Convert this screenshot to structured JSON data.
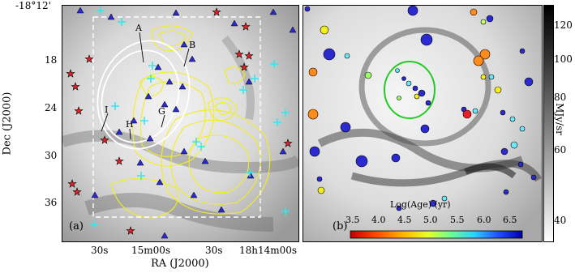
{
  "panel_a": {
    "label": "(a)",
    "y_ticks": [
      "-18°12'",
      "18",
      "24",
      "30",
      "36"
    ],
    "x_ticks": [
      "30s",
      "15m00s",
      "30s",
      "18h14m00s"
    ],
    "x_axis_title": "RA (J2000)",
    "y_axis_title": "Dec (J2000)",
    "region_labels": [
      "A",
      "B",
      "I",
      "G",
      "H"
    ]
  },
  "panel_b": {
    "label": "(b)",
    "colorbar_title": "Log(Age) (yr)",
    "colorbar_ticks": [
      "3.5",
      "4.0",
      "4.5",
      "5.0",
      "5.5",
      "6.0",
      "6.5"
    ]
  },
  "grayscale_bar": {
    "unit": "MJy/sr",
    "ticks": [
      "120",
      "100",
      "80",
      "60",
      "40"
    ]
  },
  "colors": {
    "star_red": "#e8202a",
    "triangle_blue": "#2a2ad0",
    "cross_cyan": "#33e8f0",
    "contour_yellow": "#f2ee22",
    "ring_green": "#22cc22"
  }
}
